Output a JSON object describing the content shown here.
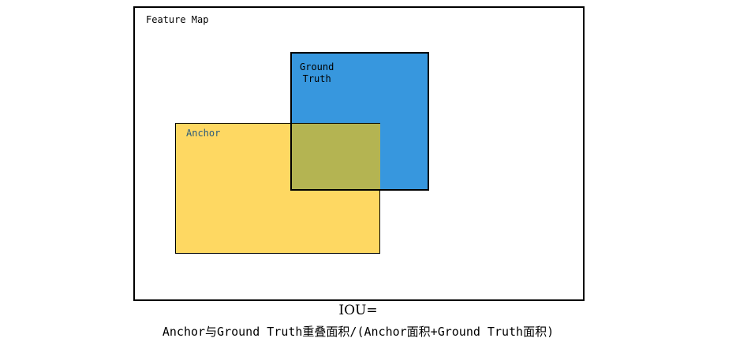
{
  "feature_map": {
    "label": "Feature Map"
  },
  "ground_truth": {
    "label": "Ground\nTruth",
    "color": "#3797de"
  },
  "anchor": {
    "label": "Anchor",
    "color": "#fed862"
  },
  "overlap": {
    "color": "#b4b452"
  },
  "formula": {
    "title": "IOU=",
    "expression": "Anchor与Ground Truth重叠面积/(Anchor面积+Ground Truth面积)"
  }
}
